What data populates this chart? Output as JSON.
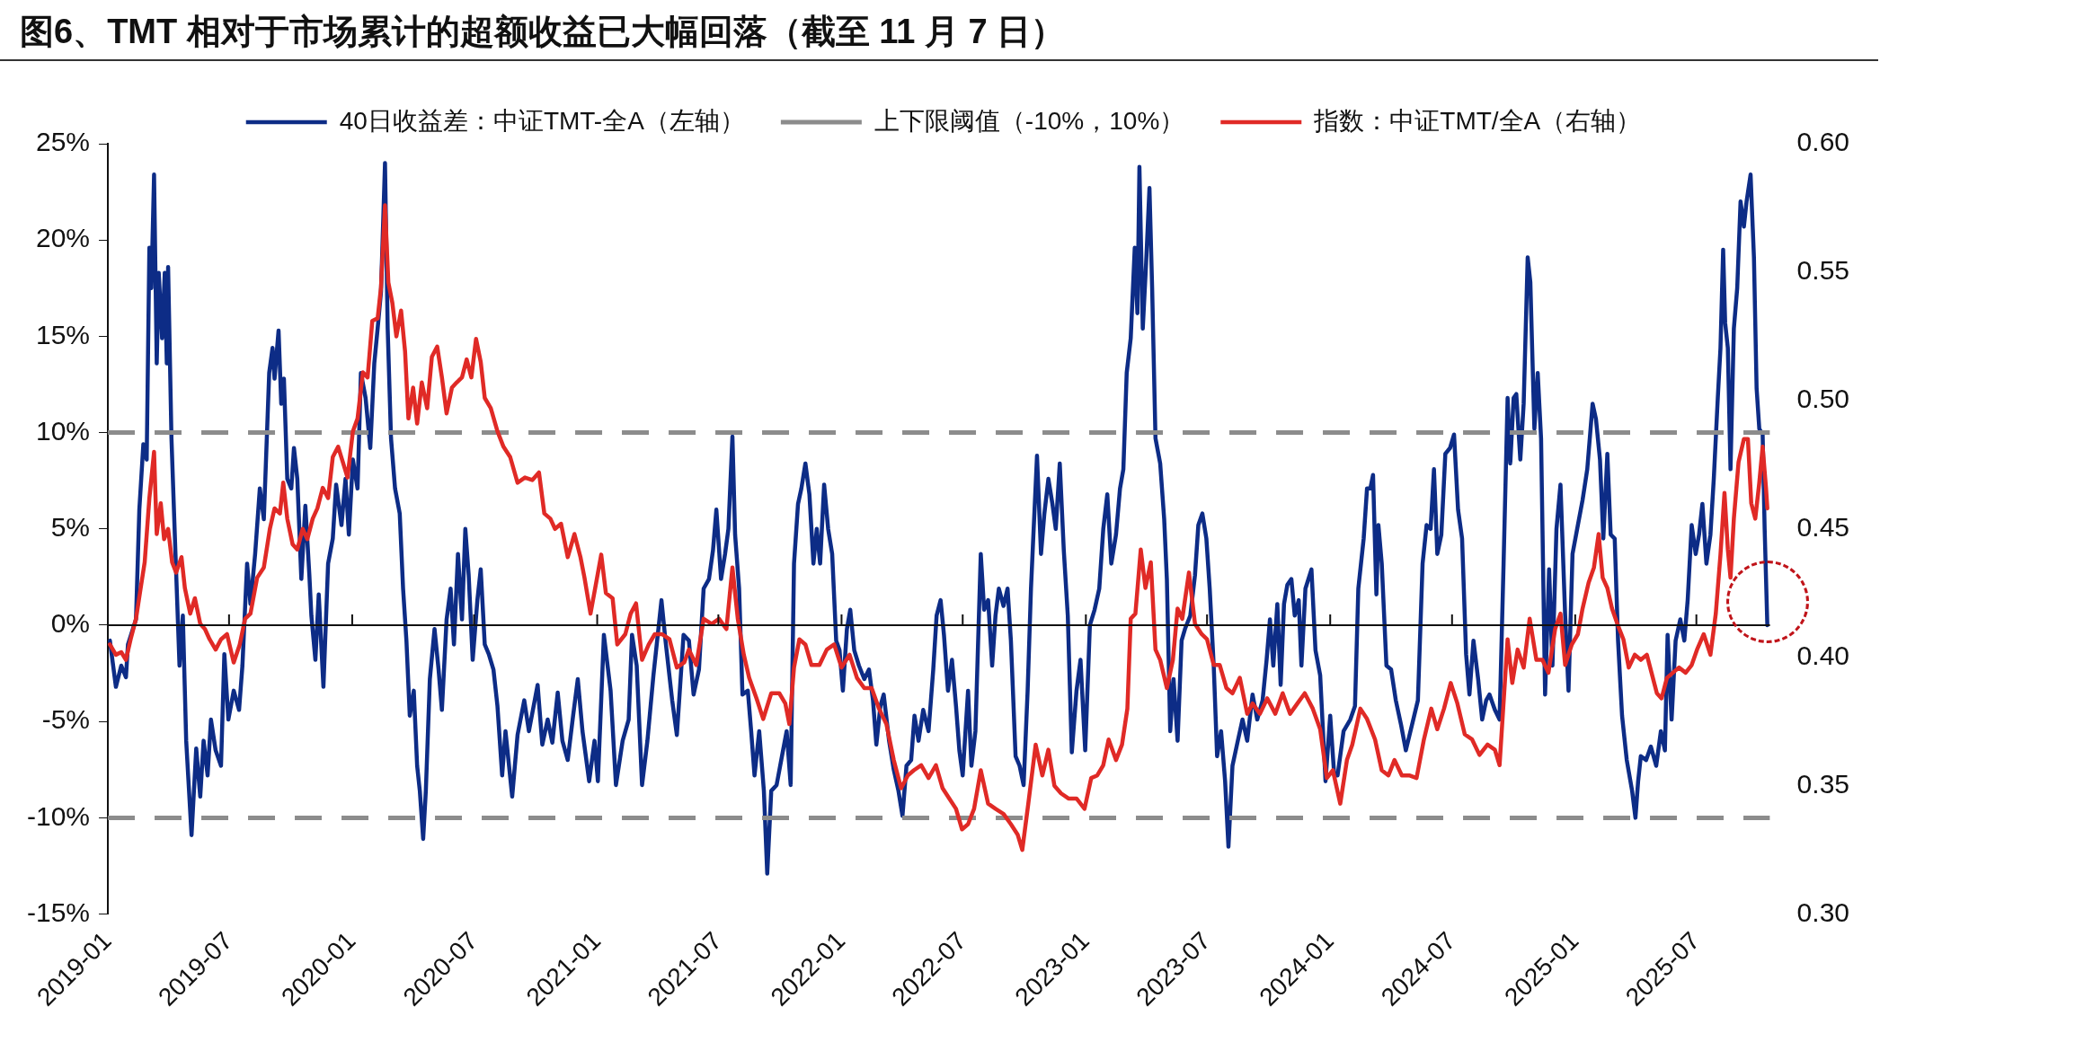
{
  "chart_data": {
    "type": "line",
    "title": "图6、TMT 相对于市场累计的超额收益已大幅回落（截至 11 月 7 日）",
    "xlim": [
      "2019-01-01",
      "2025-10-19"
    ],
    "xticks": [
      "2019-01",
      "2019-07",
      "2020-01",
      "2020-07",
      "2021-01",
      "2021-07",
      "2022-01",
      "2022-07",
      "2023-01",
      "2023-07",
      "2024-01",
      "2024-07",
      "2025-01",
      "2025-07"
    ],
    "ylim": [
      -15,
      25
    ],
    "yticks": [
      {
        "value": -15,
        "label": "-15%"
      },
      {
        "value": -10,
        "label": "-10%"
      },
      {
        "value": -5,
        "label": "-5%"
      },
      {
        "value": 0,
        "label": "0%"
      },
      {
        "value": 5,
        "label": "5%"
      },
      {
        "value": 10,
        "label": "10%"
      },
      {
        "value": 15,
        "label": "15%"
      },
      {
        "value": 20,
        "label": "20%"
      },
      {
        "value": 25,
        "label": "25%"
      }
    ],
    "y2lim": [
      0.3,
      0.6
    ],
    "y2ticks": [
      {
        "value": 0.3,
        "label": "0.30"
      },
      {
        "value": 0.35,
        "label": "0.35"
      },
      {
        "value": 0.4,
        "label": "0.40"
      },
      {
        "value": 0.45,
        "label": "0.45"
      },
      {
        "value": 0.5,
        "label": "0.50"
      },
      {
        "value": 0.55,
        "label": "0.55"
      },
      {
        "value": 0.6,
        "label": "0.60"
      }
    ],
    "legend": "top",
    "ref_lines": [
      {
        "axis": "y",
        "value": 10,
        "label": "上下限阈值（-10%，10%）",
        "color": "#8c8c8c",
        "line_style": "dashed"
      },
      {
        "axis": "y",
        "value": -10,
        "color": "#8c8c8c",
        "line_style": "dashed"
      }
    ],
    "series": [
      {
        "name": "40日收益差：中证TMT-全A（左轴）",
        "color": "#0d2c86",
        "x": [
          "2019-01-04",
          "2019-01-13",
          "2019-01-21",
          "2019-01-28",
          "2019-01-31",
          "2019-02-12",
          "2019-02-17",
          "2019-02-23",
          "2019-02-28",
          "2019-03-04",
          "2019-03-07",
          "2019-03-11",
          "2019-03-15",
          "2019-03-18",
          "2019-03-23",
          "2019-03-27",
          "2019-03-30",
          "2019-04-01",
          "2019-04-06",
          "2019-04-12",
          "2019-04-18",
          "2019-04-23",
          "2019-04-28",
          "2019-05-06",
          "2019-05-13",
          "2019-05-19",
          "2019-05-24",
          "2019-05-30",
          "2019-06-04",
          "2019-06-11",
          "2019-06-19",
          "2019-06-24",
          "2019-06-30",
          "2019-07-08",
          "2019-07-16",
          "2019-07-21",
          "2019-07-28",
          "2019-08-02",
          "2019-08-09",
          "2019-08-16",
          "2019-08-22",
          "2019-08-30",
          "2019-09-04",
          "2019-09-07",
          "2019-09-13",
          "2019-09-17",
          "2019-09-21",
          "2019-09-26",
          "2019-10-02",
          "2019-10-06",
          "2019-10-11",
          "2019-10-17",
          "2019-10-23",
          "2019-10-29",
          "2019-11-01",
          "2019-11-07",
          "2019-11-12",
          "2019-11-19",
          "2019-11-26",
          "2019-12-03",
          "2019-12-08",
          "2019-12-16",
          "2019-12-22",
          "2019-12-27",
          "2020-01-02",
          "2020-01-09",
          "2020-01-14",
          "2020-01-21",
          "2020-01-28",
          "2020-02-03",
          "2020-02-08",
          "2020-02-13",
          "2020-02-19",
          "2020-02-23",
          "2020-02-28",
          "2020-03-05",
          "2020-03-12",
          "2020-03-17",
          "2020-03-22",
          "2020-03-27",
          "2020-04-02",
          "2020-04-07",
          "2020-04-11",
          "2020-04-16",
          "2020-04-20",
          "2020-04-26",
          "2020-05-03",
          "2020-05-09",
          "2020-05-14",
          "2020-05-21",
          "2020-05-27",
          "2020-06-01",
          "2020-06-07",
          "2020-06-13",
          "2020-06-18",
          "2020-06-23",
          "2020-06-29",
          "2020-07-06",
          "2020-07-11",
          "2020-07-17",
          "2020-07-23",
          "2020-07-30",
          "2020-08-05",
          "2020-08-12",
          "2020-08-17",
          "2020-08-27",
          "2020-09-04",
          "2020-09-14",
          "2020-09-21",
          "2020-10-04",
          "2020-10-11",
          "2020-10-19",
          "2020-10-26",
          "2020-11-03",
          "2020-11-10",
          "2020-11-18",
          "2020-11-26",
          "2020-12-03",
          "2020-12-10",
          "2020-12-20",
          "2020-12-28",
          "2021-01-02",
          "2021-01-11",
          "2021-01-21",
          "2021-01-29",
          "2021-02-08",
          "2021-02-17",
          "2021-02-22",
          "2021-03-01",
          "2021-03-09",
          "2021-03-17",
          "2021-03-26",
          "2021-04-07",
          "2021-04-13",
          "2021-04-23",
          "2021-04-30",
          "2021-05-10",
          "2021-05-18",
          "2021-05-25",
          "2021-06-02",
          "2021-06-09",
          "2021-06-17",
          "2021-06-23",
          "2021-06-28",
          "2021-07-05",
          "2021-07-11",
          "2021-07-16",
          "2021-07-22",
          "2021-07-26",
          "2021-08-01",
          "2021-08-06",
          "2021-08-14",
          "2021-08-19",
          "2021-08-24",
          "2021-08-31",
          "2021-09-07",
          "2021-09-12",
          "2021-09-18",
          "2021-09-26",
          "2021-10-04",
          "2021-10-11",
          "2021-10-17",
          "2021-10-22",
          "2021-10-28",
          "2021-11-02",
          "2021-11-08",
          "2021-11-14",
          "2021-11-20",
          "2021-11-25",
          "2021-11-30",
          "2021-12-06",
          "2021-12-12",
          "2021-12-18",
          "2021-12-24",
          "2021-12-29",
          "2022-01-03",
          "2022-01-09",
          "2022-01-14",
          "2022-01-20",
          "2022-01-27",
          "2022-02-04",
          "2022-02-11",
          "2022-02-17",
          "2022-02-22",
          "2022-02-28",
          "2022-03-05",
          "2022-03-13",
          "2022-03-20",
          "2022-03-27",
          "2022-04-02",
          "2022-04-08",
          "2022-04-15",
          "2022-04-20",
          "2022-04-26",
          "2022-05-03",
          "2022-05-11",
          "2022-05-18",
          "2022-05-23",
          "2022-05-29",
          "2022-06-03",
          "2022-06-09",
          "2022-06-15",
          "2022-06-21",
          "2022-06-26",
          "2022-07-01",
          "2022-07-09",
          "2022-07-14",
          "2022-07-20",
          "2022-07-28",
          "2022-08-02",
          "2022-08-08",
          "2022-08-14",
          "2022-08-19",
          "2022-08-24",
          "2022-08-31",
          "2022-09-06",
          "2022-09-11",
          "2022-09-18",
          "2022-09-24",
          "2022-09-30",
          "2022-10-06",
          "2022-10-11",
          "2022-10-15",
          "2022-10-20",
          "2022-10-26",
          "2022-10-31",
          "2022-11-06",
          "2022-11-12",
          "2022-11-17",
          "2022-11-23",
          "2022-11-29",
          "2022-12-05",
          "2022-12-11",
          "2022-12-18",
          "2022-12-24",
          "2022-12-31",
          "2023-01-07",
          "2023-01-14",
          "2023-01-21",
          "2023-01-27",
          "2023-02-02",
          "2023-02-08",
          "2023-02-15",
          "2023-02-21",
          "2023-02-26",
          "2023-03-03",
          "2023-03-09",
          "2023-03-15",
          "2023-03-19",
          "2023-03-22",
          "2023-03-27",
          "2023-04-01",
          "2023-04-06",
          "2023-04-10",
          "2023-04-15",
          "2023-04-22",
          "2023-04-28",
          "2023-05-02",
          "2023-05-07",
          "2023-05-12",
          "2023-05-18",
          "2023-05-24",
          "2023-05-29",
          "2023-06-06",
          "2023-06-13",
          "2023-06-18",
          "2023-06-24",
          "2023-06-30",
          "2023-07-05",
          "2023-07-11",
          "2023-07-16",
          "2023-07-22",
          "2023-07-28",
          "2023-08-02",
          "2023-08-08",
          "2023-08-16",
          "2023-08-23",
          "2023-08-30",
          "2023-09-07",
          "2023-09-14",
          "2023-09-22",
          "2023-09-28",
          "2023-10-03",
          "2023-10-08",
          "2023-10-14",
          "2023-10-19",
          "2023-10-24",
          "2023-10-29",
          "2023-11-04",
          "2023-11-09",
          "2023-11-15",
          "2023-11-19",
          "2023-11-25",
          "2023-12-04",
          "2023-12-10",
          "2023-12-17",
          "2023-12-25",
          "2024-01-01",
          "2024-01-07",
          "2024-01-12",
          "2024-01-21",
          "2024-01-31",
          "2024-02-07",
          "2024-02-12",
          "2024-02-20",
          "2024-02-25",
          "2024-03-01",
          "2024-03-05",
          "2024-03-10",
          "2024-03-13",
          "2024-03-18",
          "2024-03-25",
          "2024-04-01",
          "2024-04-08",
          "2024-04-16",
          "2024-04-23",
          "2024-05-02",
          "2024-05-11",
          "2024-05-18",
          "2024-05-24",
          "2024-05-30",
          "2024-06-04",
          "2024-06-09",
          "2024-06-15",
          "2024-06-21",
          "2024-06-28",
          "2024-07-04",
          "2024-07-10",
          "2024-07-16",
          "2024-07-22",
          "2024-07-27",
          "2024-08-02",
          "2024-08-09",
          "2024-08-15",
          "2024-08-21",
          "2024-08-26",
          "2024-09-03",
          "2024-09-10",
          "2024-09-16",
          "2024-09-22",
          "2024-09-26",
          "2024-10-01",
          "2024-10-05",
          "2024-10-11",
          "2024-10-16",
          "2024-10-22",
          "2024-10-26",
          "2024-11-01",
          "2024-11-06",
          "2024-11-11",
          "2024-11-17",
          "2024-11-23",
          "2024-11-28",
          "2024-12-04",
          "2024-12-10",
          "2024-12-17",
          "2024-12-22",
          "2024-12-28",
          "2025-01-05",
          "2025-01-12",
          "2025-01-19",
          "2025-01-27",
          "2025-02-01",
          "2025-02-07",
          "2025-02-12",
          "2025-02-18",
          "2025-02-23",
          "2025-03-01",
          "2025-03-06",
          "2025-03-12",
          "2025-03-19",
          "2025-03-27",
          "2025-04-01",
          "2025-04-05",
          "2025-04-09",
          "2025-04-17",
          "2025-04-24",
          "2025-05-02",
          "2025-05-09",
          "2025-05-15",
          "2025-05-19",
          "2025-05-25",
          "2025-05-31",
          "2025-06-07",
          "2025-06-13",
          "2025-06-18",
          "2025-06-24",
          "2025-06-30",
          "2025-07-05",
          "2025-07-10",
          "2025-07-16",
          "2025-07-22",
          "2025-07-27",
          "2025-08-02",
          "2025-08-06",
          "2025-08-10",
          "2025-08-13",
          "2025-08-17",
          "2025-08-21",
          "2025-08-26",
          "2025-08-31",
          "2025-09-05",
          "2025-09-10",
          "2025-09-14",
          "2025-09-20",
          "2025-09-25",
          "2025-09-29",
          "2025-10-03",
          "2025-10-08",
          "2025-10-11",
          "2025-10-15"
        ],
        "values": [
          -0.8,
          -3.2,
          -2.1,
          -2.7,
          -1.0,
          0.3,
          6.0,
          9.4,
          8.6,
          19.6,
          17.5,
          23.4,
          13.6,
          18.3,
          14.9,
          18.3,
          13.6,
          18.6,
          9.7,
          3.7,
          -2.1,
          0.5,
          -6.0,
          -10.9,
          -6.4,
          -8.9,
          -6.0,
          -7.8,
          -4.9,
          -6.5,
          -7.3,
          -1.5,
          -4.9,
          -3.4,
          -4.4,
          -2.1,
          3.2,
          1.1,
          3.7,
          7.1,
          5.5,
          13.1,
          14.4,
          12.8,
          15.3,
          11.5,
          12.8,
          7.6,
          7.1,
          9.2,
          7.6,
          2.4,
          6.2,
          2.6,
          0.5,
          -1.8,
          1.6,
          -3.2,
          3.2,
          4.5,
          7.3,
          5.2,
          7.6,
          4.7,
          8.6,
          7.1,
          13.1,
          11.8,
          9.2,
          13.6,
          15.4,
          17.3,
          24.0,
          15.4,
          9.7,
          7.1,
          5.8,
          1.9,
          -0.8,
          -4.7,
          -3.4,
          -7.3,
          -8.6,
          -11.1,
          -8.6,
          -2.8,
          -0.2,
          -2.3,
          -4.4,
          0.3,
          1.9,
          -1.0,
          3.7,
          0.3,
          5.0,
          2.6,
          -1.8,
          1.3,
          2.9,
          -1.0,
          -1.5,
          -2.3,
          -4.2,
          -7.8,
          -5.5,
          -8.9,
          -5.7,
          -3.9,
          -5.5,
          -3.1,
          -6.2,
          -4.9,
          -6.1,
          -3.5,
          -6.0,
          -7.0,
          -4.7,
          -2.8,
          -5.5,
          -8.1,
          -6.0,
          -8.1,
          -0.5,
          -3.4,
          -8.3,
          -6.0,
          -4.9,
          -0.5,
          -2.1,
          -8.3,
          -6.0,
          -2.6,
          1.3,
          -0.8,
          -3.9,
          -5.7,
          -0.5,
          -0.8,
          -3.6,
          -2.3,
          1.9,
          2.4,
          3.9,
          6.0,
          2.4,
          3.7,
          5.0,
          9.8,
          4.7,
          1.9,
          -3.6,
          -3.4,
          -5.5,
          -7.8,
          -5.5,
          -8.6,
          -12.9,
          -8.6,
          -8.3,
          -6.8,
          -5.5,
          -8.3,
          3.2,
          6.3,
          7.1,
          8.4,
          6.8,
          3.2,
          5.0,
          3.2,
          7.3,
          5.0,
          3.7,
          -0.8,
          -1.3,
          -3.4,
          -0.2,
          0.8,
          -1.3,
          -2.1,
          -2.8,
          -2.3,
          -3.9,
          -6.2,
          -4.2,
          -3.6,
          -6.0,
          -7.5,
          -8.6,
          -9.9,
          -7.3,
          -7.0,
          -4.7,
          -6.0,
          -4.4,
          -5.5,
          -2.3,
          0.5,
          1.3,
          -0.5,
          -3.4,
          -1.8,
          -4.2,
          -6.5,
          -7.8,
          -3.4,
          -7.3,
          -5.5,
          3.7,
          0.8,
          1.3,
          -2.1,
          0.5,
          1.9,
          1.0,
          1.9,
          -0.8,
          -6.8,
          -7.3,
          -8.3,
          -3.4,
          1.9,
          5.0,
          8.8,
          3.7,
          5.8,
          7.6,
          6.3,
          5.0,
          8.4,
          3.9,
          0.5,
          -6.6,
          -3.4,
          -1.8,
          -6.5,
          0.0,
          0.8,
          1.9,
          5.0,
          6.8,
          3.2,
          4.7,
          7.1,
          8.1,
          13.1,
          14.9,
          19.6,
          16.2,
          23.8,
          15.4,
          18.8,
          22.7,
          17.5,
          9.7,
          8.4,
          5.5,
          2.4,
          -5.5,
          -2.8,
          -6.0,
          -0.8,
          -0.2,
          0.5,
          2.6,
          5.2,
          5.8,
          4.5,
          1.9,
          -2.1,
          -6.8,
          -5.5,
          -8.1,
          -11.5,
          -7.3,
          -6.0,
          -4.9,
          -6.0,
          -3.6,
          -4.9,
          -3.9,
          -1.8,
          0.3,
          -2.1,
          1.1,
          -3.1,
          1.1,
          2.1,
          2.4,
          0.5,
          1.3,
          -2.1,
          1.9,
          2.9,
          -1.3,
          -2.6,
          -8.1,
          -4.7,
          -7.8,
          -7.8,
          -5.5,
          -4.9,
          -4.2,
          1.9,
          4.5,
          7.1,
          7.1,
          7.8,
          1.6,
          5.2,
          3.2,
          -2.1,
          -2.3,
          -3.9,
          -5.2,
          -6.5,
          -5.2,
          -3.9,
          3.2,
          5.2,
          5.0,
          8.1,
          3.7,
          4.7,
          8.9,
          9.2,
          9.9,
          6.0,
          4.5,
          -1.5,
          -3.6,
          -0.8,
          -2.8,
          -4.9,
          -3.9,
          -3.6,
          -4.4,
          -4.9,
          3.2,
          11.8,
          8.4,
          11.8,
          12.0,
          8.6,
          11.5,
          19.1,
          17.8,
          10.2,
          13.1,
          9.7,
          -3.6,
          2.9,
          -2.1,
          5.0,
          7.3,
          0.5,
          -3.4,
          3.7,
          5.2,
          6.5,
          8.1,
          11.5,
          10.7,
          8.6,
          4.5,
          8.9,
          4.7,
          4.5,
          -0.8,
          -4.7,
          -7.0,
          -8.6,
          -10.0,
          -8.1,
          -6.8,
          -7.0,
          -6.3,
          -7.3,
          -5.5,
          -6.5,
          -0.5,
          -4.9,
          -0.8,
          0.3,
          -0.8,
          1.3,
          5.2,
          3.7,
          4.7,
          6.3,
          3.2,
          4.7,
          7.6,
          11.8,
          14.4,
          19.5,
          15.7,
          14.4,
          8.1,
          15.4,
          17.5,
          22.0,
          20.7,
          22.0,
          23.4,
          19.1,
          12.3,
          10.2,
          9.9,
          5.0,
          0.0
        ]
      },
      {
        "name": "指数：中证TMT/全A（右轴）",
        "color": "#e02a26",
        "axis": "y2",
        "x": [
          "2019-01-04",
          "2019-01-13",
          "2019-01-21",
          "2019-01-28",
          "2019-02-04",
          "2019-02-12",
          "2019-02-19",
          "2019-02-25",
          "2019-03-04",
          "2019-03-11",
          "2019-03-15",
          "2019-03-21",
          "2019-03-26",
          "2019-04-01",
          "2019-04-07",
          "2019-04-13",
          "2019-04-21",
          "2019-04-26",
          "2019-05-04",
          "2019-05-11",
          "2019-05-19",
          "2019-05-26",
          "2019-06-02",
          "2019-06-11",
          "2019-06-19",
          "2019-06-28",
          "2019-07-08",
          "2019-07-17",
          "2019-07-25",
          "2019-08-02",
          "2019-08-12",
          "2019-08-22",
          "2019-08-31",
          "2019-09-07",
          "2019-09-15",
          "2019-09-20",
          "2019-09-26",
          "2019-10-04",
          "2019-10-11",
          "2019-10-19",
          "2019-10-26",
          "2019-11-03",
          "2019-11-10",
          "2019-11-18",
          "2019-11-26",
          "2019-12-03",
          "2019-12-11",
          "2019-12-18",
          "2019-12-25",
          "2020-01-02",
          "2020-01-09",
          "2020-01-17",
          "2020-01-24",
          "2020-01-31",
          "2020-02-08",
          "2020-02-13",
          "2020-02-19",
          "2020-02-24",
          "2020-03-01",
          "2020-03-07",
          "2020-03-14",
          "2020-03-20",
          "2020-03-25",
          "2020-04-01",
          "2020-04-07",
          "2020-04-14",
          "2020-04-22",
          "2020-04-29",
          "2020-05-07",
          "2020-05-14",
          "2020-05-21",
          "2020-05-29",
          "2020-06-05",
          "2020-06-13",
          "2020-06-20",
          "2020-06-27",
          "2020-07-04",
          "2020-07-11",
          "2020-07-17",
          "2020-07-26",
          "2020-08-05",
          "2020-08-14",
          "2020-08-24",
          "2020-09-04",
          "2020-09-15",
          "2020-09-26",
          "2020-10-06",
          "2020-10-14",
          "2020-10-23",
          "2020-10-30",
          "2020-11-08",
          "2020-11-18",
          "2020-11-28",
          "2020-12-07",
          "2020-12-13",
          "2020-12-22",
          "2020-12-29",
          "2021-01-07",
          "2021-01-14",
          "2021-01-24",
          "2021-01-31",
          "2021-02-12",
          "2021-02-20",
          "2021-02-28",
          "2021-03-09",
          "2021-03-19",
          "2021-03-28",
          "2021-04-08",
          "2021-04-19",
          "2021-04-30",
          "2021-05-11",
          "2021-05-18",
          "2021-05-29",
          "2021-06-09",
          "2021-06-21",
          "2021-07-02",
          "2021-07-13",
          "2021-07-22",
          "2021-07-30",
          "2021-08-08",
          "2021-08-16",
          "2021-08-27",
          "2021-09-06",
          "2021-09-18",
          "2021-09-30",
          "2021-10-09",
          "2021-10-15",
          "2021-10-22",
          "2021-10-30",
          "2021-11-08",
          "2021-11-17",
          "2021-11-29",
          "2021-12-10",
          "2021-12-21",
          "2022-01-01",
          "2022-01-13",
          "2022-01-24",
          "2022-02-04",
          "2022-02-15",
          "2022-02-26",
          "2022-03-09",
          "2022-03-20",
          "2022-03-31",
          "2022-04-10",
          "2022-04-19",
          "2022-04-30",
          "2022-05-11",
          "2022-05-22",
          "2022-06-01",
          "2022-06-11",
          "2022-06-21",
          "2022-06-30",
          "2022-07-09",
          "2022-07-18",
          "2022-07-28",
          "2022-08-08",
          "2022-08-19",
          "2022-08-31",
          "2022-09-11",
          "2022-09-21",
          "2022-09-28",
          "2022-10-07",
          "2022-10-18",
          "2022-10-28",
          "2022-11-06",
          "2022-11-15",
          "2022-11-25",
          "2022-12-06",
          "2022-12-18",
          "2022-12-30",
          "2023-01-09",
          "2023-01-18",
          "2023-01-27",
          "2023-02-04",
          "2023-02-15",
          "2023-02-24",
          "2023-03-04",
          "2023-03-09",
          "2023-03-16",
          "2023-03-24",
          "2023-03-31",
          "2023-04-08",
          "2023-04-15",
          "2023-04-22",
          "2023-05-02",
          "2023-05-11",
          "2023-05-18",
          "2023-05-25",
          "2023-06-04",
          "2023-06-13",
          "2023-06-23",
          "2023-07-01",
          "2023-07-11",
          "2023-07-20",
          "2023-07-30",
          "2023-08-08",
          "2023-08-19",
          "2023-08-30",
          "2023-09-07",
          "2023-09-18",
          "2023-09-29",
          "2023-10-11",
          "2023-10-22",
          "2023-11-02",
          "2023-11-13",
          "2023-11-24",
          "2023-12-06",
          "2023-12-17",
          "2023-12-27",
          "2024-01-05",
          "2024-01-16",
          "2024-01-26",
          "2024-02-03",
          "2024-02-15",
          "2024-02-25",
          "2024-03-08",
          "2024-03-18",
          "2024-03-28",
          "2024-04-06",
          "2024-04-17",
          "2024-04-28",
          "2024-05-09",
          "2024-05-20",
          "2024-05-31",
          "2024-06-09",
          "2024-06-19",
          "2024-06-29",
          "2024-07-09",
          "2024-07-20",
          "2024-07-31",
          "2024-08-11",
          "2024-08-23",
          "2024-09-03",
          "2024-09-10",
          "2024-09-22",
          "2024-09-29",
          "2024-10-07",
          "2024-10-16",
          "2024-10-25",
          "2024-11-04",
          "2024-11-13",
          "2024-11-22",
          "2024-12-02",
          "2024-12-10",
          "2024-12-17",
          "2024-12-27",
          "2025-01-05",
          "2025-01-12",
          "2025-01-21",
          "2025-01-29",
          "2025-02-05",
          "2025-02-11",
          "2025-02-18",
          "2025-02-25",
          "2025-03-05",
          "2025-03-14",
          "2025-03-22",
          "2025-03-31",
          "2025-04-09",
          "2025-04-18",
          "2025-04-25",
          "2025-05-03",
          "2025-05-10",
          "2025-05-18",
          "2025-05-27",
          "2025-06-05",
          "2025-06-15",
          "2025-06-24",
          "2025-07-02",
          "2025-07-12",
          "2025-07-22",
          "2025-07-30",
          "2025-08-06",
          "2025-08-12",
          "2025-08-17",
          "2025-08-21",
          "2025-08-26",
          "2025-09-02",
          "2025-09-10",
          "2025-09-16",
          "2025-09-21",
          "2025-09-27",
          "2025-10-03",
          "2025-10-08",
          "2025-10-13",
          "2025-10-15"
        ],
        "values": [
          0.405,
          0.401,
          0.402,
          0.399,
          0.407,
          0.415,
          0.427,
          0.437,
          0.462,
          0.48,
          0.448,
          0.46,
          0.446,
          0.45,
          0.437,
          0.433,
          0.439,
          0.427,
          0.417,
          0.423,
          0.413,
          0.411,
          0.407,
          0.403,
          0.407,
          0.409,
          0.398,
          0.405,
          0.415,
          0.417,
          0.431,
          0.435,
          0.45,
          0.458,
          0.456,
          0.468,
          0.454,
          0.444,
          0.442,
          0.45,
          0.446,
          0.454,
          0.458,
          0.466,
          0.462,
          0.478,
          0.482,
          0.476,
          0.47,
          0.488,
          0.493,
          0.511,
          0.509,
          0.531,
          0.532,
          0.544,
          0.576,
          0.546,
          0.538,
          0.525,
          0.535,
          0.519,
          0.493,
          0.505,
          0.491,
          0.507,
          0.497,
          0.517,
          0.521,
          0.509,
          0.495,
          0.505,
          0.507,
          0.509,
          0.516,
          0.509,
          0.524,
          0.515,
          0.501,
          0.497,
          0.488,
          0.482,
          0.478,
          0.468,
          0.47,
          0.469,
          0.472,
          0.456,
          0.454,
          0.45,
          0.452,
          0.439,
          0.448,
          0.439,
          0.431,
          0.417,
          0.427,
          0.44,
          0.425,
          0.423,
          0.405,
          0.409,
          0.417,
          0.421,
          0.399,
          0.405,
          0.409,
          0.409,
          0.407,
          0.396,
          0.398,
          0.403,
          0.397,
          0.415,
          0.413,
          0.415,
          0.411,
          0.435,
          0.415,
          0.401,
          0.392,
          0.384,
          0.376,
          0.386,
          0.386,
          0.382,
          0.374,
          0.396,
          0.407,
          0.405,
          0.397,
          0.397,
          0.403,
          0.405,
          0.396,
          0.401,
          0.392,
          0.388,
          0.388,
          0.38,
          0.374,
          0.36,
          0.349,
          0.354,
          0.356,
          0.358,
          0.353,
          0.358,
          0.349,
          0.345,
          0.341,
          0.333,
          0.335,
          0.341,
          0.356,
          0.343,
          0.341,
          0.339,
          0.335,
          0.331,
          0.325,
          0.343,
          0.366,
          0.354,
          0.364,
          0.35,
          0.347,
          0.345,
          0.345,
          0.341,
          0.353,
          0.354,
          0.358,
          0.368,
          0.36,
          0.366,
          0.38,
          0.415,
          0.417,
          0.442,
          0.427,
          0.437,
          0.403,
          0.399,
          0.388,
          0.399,
          0.419,
          0.415,
          0.433,
          0.413,
          0.409,
          0.407,
          0.397,
          0.397,
          0.388,
          0.386,
          0.392,
          0.378,
          0.382,
          0.378,
          0.384,
          0.378,
          0.386,
          0.378,
          0.382,
          0.386,
          0.38,
          0.372,
          0.353,
          0.356,
          0.343,
          0.36,
          0.366,
          0.38,
          0.376,
          0.368,
          0.356,
          0.354,
          0.36,
          0.354,
          0.354,
          0.353,
          0.368,
          0.38,
          0.372,
          0.38,
          0.39,
          0.382,
          0.37,
          0.368,
          0.362,
          0.366,
          0.364,
          0.358,
          0.407,
          0.39,
          0.403,
          0.396,
          0.415,
          0.399,
          0.399,
          0.394,
          0.411,
          0.417,
          0.397,
          0.405,
          0.409,
          0.419,
          0.429,
          0.435,
          0.448,
          0.431,
          0.427,
          0.419,
          0.413,
          0.407,
          0.396,
          0.401,
          0.399,
          0.401,
          0.394,
          0.386,
          0.384,
          0.392,
          0.394,
          0.396,
          0.394,
          0.397,
          0.403,
          0.409,
          0.401,
          0.417,
          0.44,
          0.464,
          0.442,
          0.431,
          0.454,
          0.476,
          0.485,
          0.485,
          0.46,
          0.454,
          0.468,
          0.482,
          0.466,
          0.458
        ]
      }
    ]
  }
}
